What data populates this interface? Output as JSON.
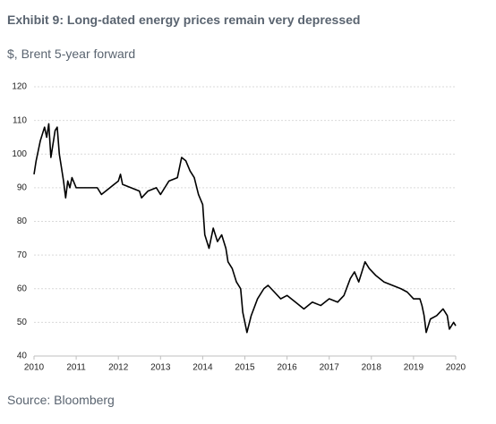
{
  "chart_data": {
    "type": "line",
    "title": "Exhibit 9: Long-dated energy prices remain very depressed",
    "subtitle": "$, Brent 5-year forward",
    "source": "Source: Bloomberg",
    "x": [
      2010.0,
      2010.05,
      2010.1,
      2010.15,
      2010.2,
      2010.25,
      2010.3,
      2010.35,
      2010.4,
      2010.45,
      2010.5,
      2010.55,
      2010.6,
      2010.65,
      2010.7,
      2010.75,
      2010.8,
      2010.85,
      2010.9,
      2011.0,
      2011.5,
      2011.6,
      2011.8,
      2012.0,
      2012.05,
      2012.1,
      2012.5,
      2012.55,
      2012.7,
      2012.9,
      2013.0,
      2013.1,
      2013.2,
      2013.4,
      2013.5,
      2013.6,
      2013.7,
      2013.8,
      2013.9,
      2014.0,
      2014.05,
      2014.15,
      2014.25,
      2014.35,
      2014.45,
      2014.55,
      2014.6,
      2014.7,
      2014.8,
      2014.9,
      2014.95,
      2015.05,
      2015.15,
      2015.3,
      2015.45,
      2015.55,
      2015.7,
      2015.85,
      2016.0,
      2016.2,
      2016.4,
      2016.6,
      2016.8,
      2017.0,
      2017.2,
      2017.35,
      2017.5,
      2017.6,
      2017.7,
      2017.8,
      2017.85,
      2017.95,
      2018.1,
      2018.3,
      2018.5,
      2018.7,
      2018.85,
      2019.0,
      2019.15,
      2019.2,
      2019.25,
      2019.3,
      2019.4,
      2019.55,
      2019.7,
      2019.8,
      2019.85,
      2019.95,
      2020.0
    ],
    "series": [
      {
        "name": "Brent 5-year forward",
        "color": "#000000",
        "values": [
          94,
          98,
          101,
          104,
          106,
          108,
          105,
          109,
          99,
          103,
          107,
          108,
          100,
          96,
          92,
          87,
          92,
          90,
          93,
          90,
          90,
          88,
          90,
          92,
          94,
          91,
          89,
          87,
          89,
          90,
          88,
          90,
          92,
          93,
          99,
          98,
          95,
          93,
          88,
          85,
          76,
          72,
          78,
          74,
          76,
          72,
          68,
          66,
          62,
          60,
          53,
          47,
          52,
          57,
          60,
          61,
          59,
          57,
          58,
          56,
          54,
          56,
          55,
          57,
          56,
          58,
          63,
          65,
          62,
          66,
          68,
          66,
          64,
          62,
          61,
          60,
          59,
          57,
          57,
          55,
          52,
          47,
          51,
          52,
          54,
          52,
          48,
          50,
          49
        ]
      }
    ],
    "xlim": [
      2010,
      2020
    ],
    "xticks": [
      2010,
      2011,
      2012,
      2013,
      2014,
      2015,
      2016,
      2017,
      2018,
      2019,
      2020
    ],
    "ylim": [
      40,
      120
    ],
    "yticks": [
      40,
      50,
      60,
      70,
      80,
      90,
      100,
      110,
      120
    ],
    "grid": true
  }
}
